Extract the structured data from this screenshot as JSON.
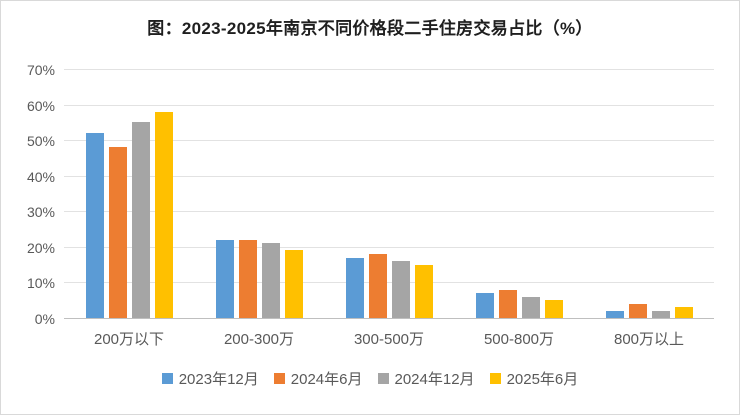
{
  "chart_data": {
    "type": "bar",
    "title": "图：2023-2025年南京不同价格段二手住房交易占比（%）",
    "categories": [
      "200万以下",
      "200-300万",
      "300-500万",
      "500-800万",
      "800万以上"
    ],
    "series": [
      {
        "name": "2023年12月",
        "color": "#5B9BD5",
        "values": [
          52,
          22,
          17,
          7,
          2
        ]
      },
      {
        "name": "2024年6月",
        "color": "#ED7D31",
        "values": [
          48,
          22,
          18,
          8,
          4
        ]
      },
      {
        "name": "2024年12月",
        "color": "#A5A5A5",
        "values": [
          55,
          21,
          16,
          6,
          2
        ]
      },
      {
        "name": "2025年6月",
        "color": "#FFC000",
        "values": [
          58,
          19,
          15,
          5,
          3
        ]
      }
    ],
    "ylim": [
      0,
      70
    ],
    "ytick_labels": [
      "0%",
      "10%",
      "20%",
      "30%",
      "40%",
      "50%",
      "60%",
      "70%"
    ],
    "grid": true,
    "legend_position": "bottom",
    "xlabel": "",
    "ylabel": ""
  },
  "colors": {
    "gridline": "#e2e2e2",
    "axis_line": "#bfbfbf",
    "tick_text": "#595959",
    "title_text": "#1f1f1f",
    "frame_border": "#d9d9d9"
  }
}
